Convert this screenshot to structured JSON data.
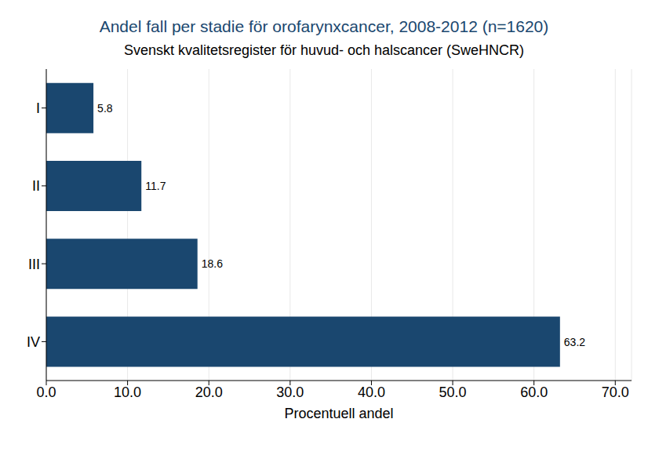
{
  "chart_data": {
    "type": "bar",
    "title": "Andel fall per stadie för orofarynxcancer, 2008-2012 (n=1620)",
    "subtitle": "Svenskt kvalitetsregister för huvud- och halscancer (SweHNCR)",
    "orientation": "horizontal",
    "categories": [
      "I",
      "II",
      "III",
      "IV"
    ],
    "values": [
      5.8,
      11.7,
      18.6,
      63.2
    ],
    "color": "#1a476f",
    "x_label": "Procentuell andel",
    "xlim": [
      0,
      72
    ],
    "xticks": [
      {
        "value": 0,
        "label": "0.0"
      },
      {
        "value": 10,
        "label": "10.0"
      },
      {
        "value": 20,
        "label": "20.0"
      },
      {
        "value": 30,
        "label": "30.0"
      },
      {
        "value": 40,
        "label": "40.0"
      },
      {
        "value": 50,
        "label": "50.0"
      },
      {
        "value": 60,
        "label": "60.0"
      },
      {
        "value": 70,
        "label": "70.0"
      }
    ],
    "grid": true,
    "data_labels": true
  }
}
